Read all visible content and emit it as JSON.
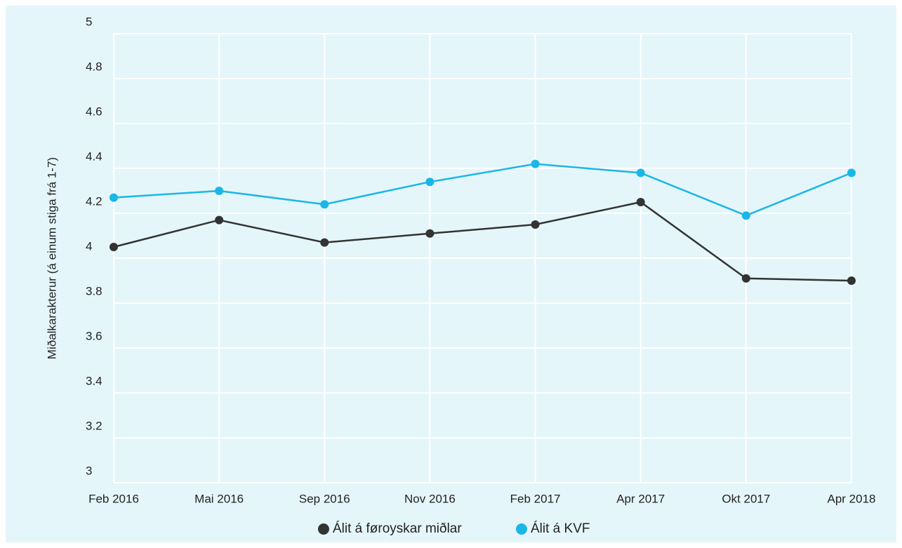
{
  "chart_data": {
    "type": "line",
    "y_label": "Miðalkarakterur (á einum stiga frá 1-7)",
    "categories": [
      "Feb 2016",
      "Mai 2016",
      "Sep 2016",
      "Nov 2016",
      "Feb 2017",
      "Apr 2017",
      "Okt 2017",
      "Apr 2018"
    ],
    "series": [
      {
        "name": "Álit á føroyskar miðlar",
        "color": "#333333",
        "values": [
          4.05,
          4.17,
          4.07,
          4.11,
          4.15,
          4.25,
          3.91,
          3.9
        ]
      },
      {
        "name": "Álit á KVF",
        "color": "#1ab7e6",
        "values": [
          4.27,
          4.3,
          4.24,
          4.34,
          4.42,
          4.38,
          4.19,
          4.38
        ]
      }
    ],
    "ylim": [
      3,
      5
    ],
    "yticks": [
      3,
      3.2,
      3.4,
      3.6,
      3.8,
      4,
      4.2,
      4.4,
      4.6,
      4.8,
      5
    ],
    "grid": true,
    "legend": "bottom"
  }
}
